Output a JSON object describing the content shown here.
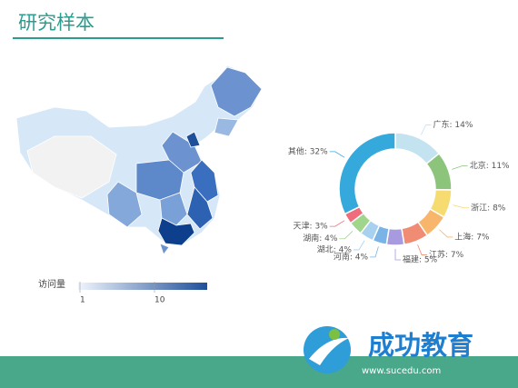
{
  "title": "研究样本",
  "map": {
    "legend_label": "访问量",
    "legend_ticks": [
      1,
      10
    ]
  },
  "chart_data": {
    "type": "pie",
    "values": [
      14,
      11,
      8,
      7,
      7,
      5,
      4,
      4,
      4,
      3,
      32
    ],
    "value_labels": [
      "广东: 14%",
      "北京: 11%",
      "浙江: 8%",
      "上海: 7%",
      "江苏: 7%",
      "福建: 5%",
      "河南: 4%",
      "湖北: 4%",
      "湖南: 4%",
      "天津: 3%",
      "其他: 32%"
    ],
    "colors": [
      "#c4e3f1",
      "#8cc47c",
      "#f6dc70",
      "#f8b66c",
      "#f08b74",
      "#a79ade",
      "#7ab3e6",
      "#a7d1ef",
      "#9fd68c",
      "#f06b7c",
      "#36a9dc"
    ]
  },
  "watermark": {
    "brand": "成功教育",
    "url": "www.sucedu.com"
  }
}
